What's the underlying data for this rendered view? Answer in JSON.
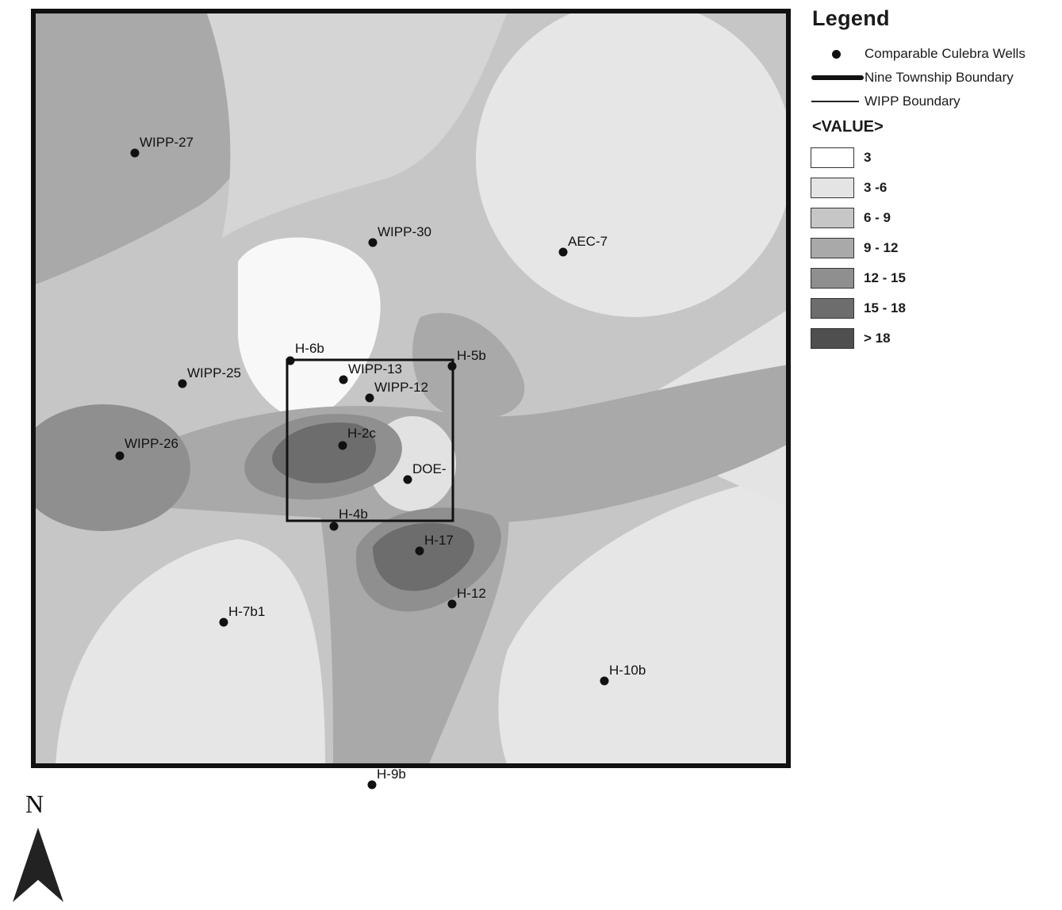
{
  "legend": {
    "title": "Legend",
    "symbols": [
      {
        "kind": "dot",
        "label": "Comparable Culebra Wells"
      },
      {
        "kind": "thick-line",
        "label": "Nine Township Boundary"
      },
      {
        "kind": "thin-line",
        "label": "WIPP Boundary"
      }
    ],
    "value_heading": "<VALUE>",
    "classes": [
      {
        "label": "3",
        "color": "#ffffff"
      },
      {
        "label": "3 -6",
        "color": "#e4e4e4"
      },
      {
        "label": "6 - 9",
        "color": "#c6c6c6"
      },
      {
        "label": "9 - 12",
        "color": "#a9a9a9"
      },
      {
        "label": "12 - 15",
        "color": "#8f8f8f"
      },
      {
        "label": "15 - 18",
        "color": "#6d6d6d"
      },
      {
        "label": "> 18",
        "color": "#4f4f4f"
      }
    ]
  },
  "wells": [
    {
      "id": "WIPP-27",
      "label": "WIPP-27"
    },
    {
      "id": "WIPP-30",
      "label": "WIPP-30"
    },
    {
      "id": "AEC-7",
      "label": "AEC-7"
    },
    {
      "id": "H-6b",
      "label": "H-6b"
    },
    {
      "id": "H-5b",
      "label": "H-5b"
    },
    {
      "id": "WIPP-13",
      "label": "WIPP-13"
    },
    {
      "id": "WIPP-12",
      "label": "WIPP-12"
    },
    {
      "id": "WIPP-25",
      "label": "WIPP-25"
    },
    {
      "id": "WIPP-26",
      "label": "WIPP-26"
    },
    {
      "id": "H-2c",
      "label": "H-2c"
    },
    {
      "id": "DOE-",
      "label": "DOE-"
    },
    {
      "id": "H-4b",
      "label": "H-4b"
    },
    {
      "id": "H-17",
      "label": "H-17"
    },
    {
      "id": "H-12",
      "label": "H-12"
    },
    {
      "id": "H-7b1",
      "label": "H-7b1"
    },
    {
      "id": "H-10b",
      "label": "H-10b"
    },
    {
      "id": "H-9b",
      "label": "H-9b"
    }
  ],
  "north_arrow": {
    "label": "N"
  }
}
